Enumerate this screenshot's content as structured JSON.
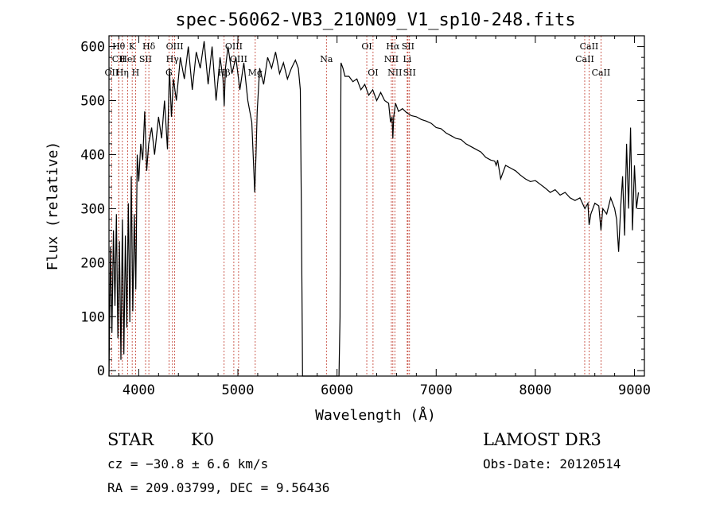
{
  "chart_data": {
    "type": "line",
    "title": "spec-56062-VB3_210N09_V1_sp10-248.fits",
    "xlabel": "Wavelength (Å)",
    "ylabel": "Flux (relative)",
    "xlim": [
      3700,
      9100
    ],
    "ylim": [
      -10,
      620
    ],
    "xticks": [
      4000,
      5000,
      6000,
      7000,
      8000,
      9000
    ],
    "xtick_labels": [
      "4000",
      "5000",
      "6000",
      "7000",
      "8000",
      "9000"
    ],
    "yticks": [
      0,
      100,
      200,
      300,
      400,
      500,
      600
    ],
    "ytick_labels": [
      "0",
      "100",
      "200",
      "300",
      "400",
      "500",
      "600"
    ],
    "series": [
      {
        "name": "flux",
        "x": [
          3700,
          3715,
          3730,
          3745,
          3760,
          3775,
          3790,
          3805,
          3820,
          3835,
          3850,
          3865,
          3880,
          3895,
          3910,
          3925,
          3940,
          3955,
          3970,
          3985,
          4000,
          4020,
          4040,
          4060,
          4080,
          4100,
          4130,
          4160,
          4200,
          4230,
          4260,
          4290,
          4310,
          4330,
          4350,
          4380,
          4420,
          4460,
          4500,
          4540,
          4580,
          4620,
          4660,
          4700,
          4740,
          4780,
          4820,
          4850,
          4862,
          4875,
          4900,
          4940,
          4980,
          5020,
          5060,
          5100,
          5140,
          5170,
          5183,
          5195,
          5220,
          5260,
          5300,
          5340,
          5380,
          5420,
          5460,
          5500,
          5540,
          5580,
          5610,
          5630,
          5640,
          5650,
          5652,
          6020,
          6030,
          6040,
          6060,
          6080,
          6120,
          6160,
          6200,
          6240,
          6280,
          6320,
          6360,
          6400,
          6440,
          6480,
          6520,
          6540,
          6555,
          6563,
          6572,
          6590,
          6620,
          6660,
          6700,
          6750,
          6800,
          6850,
          6900,
          6950,
          7000,
          7050,
          7100,
          7150,
          7200,
          7250,
          7300,
          7350,
          7400,
          7450,
          7500,
          7550,
          7590,
          7605,
          7620,
          7650,
          7700,
          7750,
          7800,
          7850,
          7900,
          7950,
          8000,
          8050,
          8100,
          8150,
          8200,
          8250,
          8300,
          8350,
          8400,
          8450,
          8500,
          8530,
          8542,
          8560,
          8600,
          8640,
          8662,
          8680,
          8720,
          8760,
          8800,
          8820,
          8840,
          8860,
          8880,
          8900,
          8920,
          8940,
          8960,
          8980,
          9000,
          9020,
          9040
        ],
        "y": [
          -10,
          230,
          70,
          260,
          120,
          290,
          60,
          240,
          20,
          280,
          30,
          250,
          80,
          310,
          90,
          360,
          110,
          290,
          150,
          400,
          350,
          420,
          390,
          480,
          370,
          420,
          450,
          400,
          470,
          430,
          500,
          410,
          560,
          470,
          540,
          500,
          580,
          540,
          600,
          520,
          590,
          560,
          610,
          530,
          600,
          500,
          580,
          540,
          490,
          560,
          600,
          550,
          580,
          520,
          570,
          500,
          460,
          330,
          400,
          480,
          560,
          530,
          580,
          560,
          590,
          550,
          570,
          540,
          560,
          575,
          560,
          520,
          300,
          60,
          -10,
          -10,
          100,
          570,
          560,
          545,
          545,
          535,
          540,
          520,
          530,
          510,
          520,
          500,
          515,
          500,
          495,
          460,
          470,
          430,
          470,
          495,
          480,
          485,
          478,
          472,
          470,
          465,
          462,
          458,
          450,
          448,
          440,
          435,
          430,
          428,
          420,
          415,
          410,
          405,
          395,
          390,
          388,
          380,
          390,
          355,
          380,
          375,
          370,
          362,
          355,
          350,
          352,
          345,
          338,
          330,
          335,
          325,
          330,
          320,
          315,
          320,
          300,
          310,
          270,
          290,
          310,
          305,
          260,
          300,
          290,
          320,
          300,
          280,
          220,
          300,
          360,
          250,
          420,
          300,
          450,
          260,
          380,
          300,
          330
        ]
      }
    ],
    "lines": [
      {
        "label": "Hθ",
        "x": 3798,
        "row": 1
      },
      {
        "label": "CII",
        "x": 3799,
        "row": 2
      },
      {
        "label": "OII",
        "x": 3727,
        "row": 3
      },
      {
        "label": "Hη",
        "x": 3835,
        "row": 3
      },
      {
        "label": "HeI",
        "x": 3889,
        "row": 2
      },
      {
        "label": "H",
        "x": 3968,
        "row": 3
      },
      {
        "label": "K",
        "x": 3934,
        "row": 1
      },
      {
        "label": "SII",
        "x": 4069,
        "row": 2
      },
      {
        "label": "Hδ",
        "x": 4102,
        "row": 1
      },
      {
        "label": "OIII",
        "x": 4363,
        "row": 1
      },
      {
        "label": "Hγ",
        "x": 4340,
        "row": 2
      },
      {
        "label": "G",
        "x": 4305,
        "row": 3
      },
      {
        "label": "OIII",
        "x": 4959,
        "row": 1
      },
      {
        "label": "OIII",
        "x": 5007,
        "row": 2
      },
      {
        "label": "Hβ",
        "x": 4861,
        "row": 3
      },
      {
        "label": "Mg",
        "x": 5175,
        "row": 3
      },
      {
        "label": "Na",
        "x": 5893,
        "row": 2
      },
      {
        "label": "OI",
        "x": 6300,
        "row": 1
      },
      {
        "label": "OI",
        "x": 6363,
        "row": 3
      },
      {
        "label": "Hα",
        "x": 6563,
        "row": 1
      },
      {
        "label": "NII",
        "x": 6548,
        "row": 2
      },
      {
        "label": "NII",
        "x": 6583,
        "row": 3
      },
      {
        "label": "SII",
        "x": 6716,
        "row": 1
      },
      {
        "label": "Li",
        "x": 6708,
        "row": 2
      },
      {
        "label": "SII",
        "x": 6731,
        "row": 3
      },
      {
        "label": "CaII",
        "x": 8542,
        "row": 1
      },
      {
        "label": "CaII",
        "x": 8498,
        "row": 2
      },
      {
        "label": "CaII",
        "x": 8662,
        "row": 3
      }
    ]
  },
  "info": {
    "class_label": "STAR",
    "subclass_label": "K0",
    "cz_text": "cz = −30.8 ± 6.6 km/s",
    "radec_text": "RA = 209.03799, DEC =    9.56436",
    "survey_label": "LAMOST DR3",
    "obs_date_text": "Obs-Date: 20120514"
  },
  "colors": {
    "spectrum": "#000000",
    "line_marker": "#c0392b",
    "axis": "#000000"
  }
}
